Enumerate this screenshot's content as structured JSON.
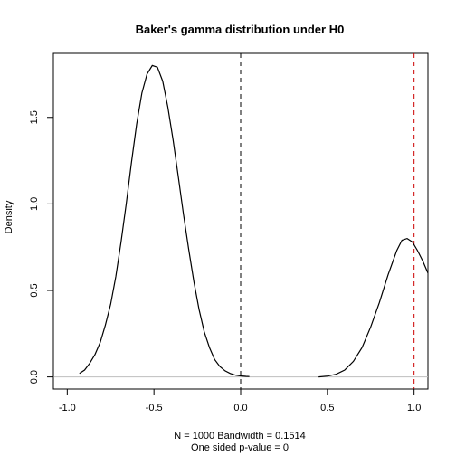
{
  "chart_data": {
    "type": "line",
    "title": "Baker's gamma distribution under H0",
    "xlabel": "",
    "ylabel": "Density",
    "subtitle_lines": [
      "N = 1000   Bandwidth = 0.1514",
      "One sided p-value = 0"
    ],
    "xlim": [
      -1.08,
      1.08
    ],
    "ylim": [
      -0.07,
      1.87
    ],
    "x_ticks": [
      -1.0,
      -0.5,
      0.0,
      0.5,
      1.0
    ],
    "x_tick_labels": [
      "-1.0",
      "-0.5",
      "0.0",
      "0.5",
      "1.0"
    ],
    "y_ticks": [
      0.0,
      0.5,
      1.0,
      1.5
    ],
    "y_tick_labels": [
      "0.0",
      "0.5",
      "1.0",
      "1.5"
    ],
    "grid": false,
    "baseline": {
      "y": 0,
      "color": "#bebebe"
    },
    "series": [
      {
        "color": "#000000",
        "x": [
          -0.93,
          -0.9,
          -0.87,
          -0.84,
          -0.81,
          -0.78,
          -0.75,
          -0.72,
          -0.69,
          -0.66,
          -0.63,
          -0.6,
          -0.57,
          -0.54,
          -0.51,
          -0.48,
          -0.45,
          -0.42,
          -0.39,
          -0.36,
          -0.33,
          -0.3,
          -0.27,
          -0.24,
          -0.21,
          -0.18,
          -0.15,
          -0.12,
          -0.09,
          -0.06,
          -0.03,
          0.0,
          0.03,
          0.05
        ],
        "y": [
          0.02,
          0.04,
          0.08,
          0.13,
          0.2,
          0.3,
          0.42,
          0.58,
          0.78,
          1.0,
          1.24,
          1.46,
          1.64,
          1.75,
          1.8,
          1.79,
          1.71,
          1.56,
          1.37,
          1.16,
          0.94,
          0.74,
          0.55,
          0.39,
          0.26,
          0.17,
          0.1,
          0.06,
          0.035,
          0.02,
          0.01,
          0.006,
          0.003,
          0.002
        ]
      },
      {
        "color": "#000000",
        "x": [
          0.45,
          0.5,
          0.55,
          0.6,
          0.65,
          0.7,
          0.75,
          0.8,
          0.85,
          0.9,
          0.93,
          0.96,
          0.99,
          1.02,
          1.05,
          1.08
        ],
        "y": [
          0.0,
          0.005,
          0.015,
          0.04,
          0.09,
          0.17,
          0.29,
          0.43,
          0.59,
          0.73,
          0.79,
          0.8,
          0.78,
          0.73,
          0.67,
          0.6
        ]
      }
    ],
    "vlines": [
      {
        "x": 0.0,
        "color": "#000000",
        "style": "dashed"
      },
      {
        "x": 1.0,
        "color": "#cc0000",
        "style": "dashed"
      }
    ]
  }
}
